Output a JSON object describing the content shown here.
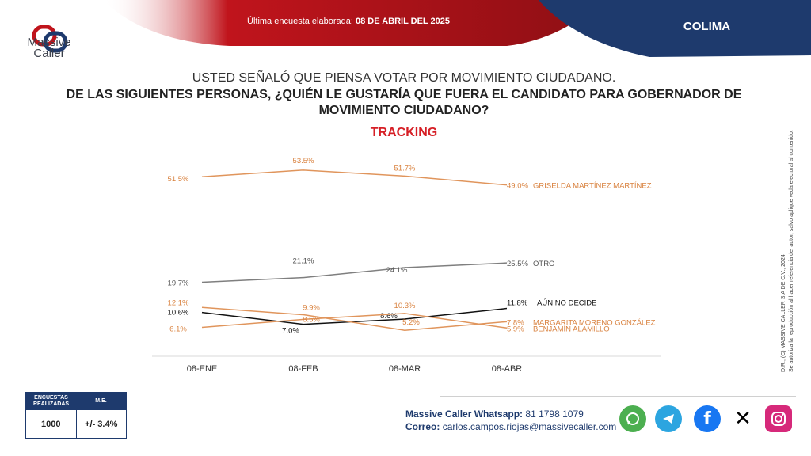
{
  "header": {
    "brand": "Massive Caller",
    "date_prefix": "Última encuesta elaborada: ",
    "date_value": "08 DE ABRIL DEL 2025",
    "region": "COLIMA"
  },
  "question": {
    "line1": "USTED SEÑALÓ QUE PIENSA VOTAR POR MOVIMIENTO CIUDADANO.",
    "line2": "DE LAS SIGUIENTES PERSONAS, ¿QUIÉN LE GUSTARÍA QUE FUERA EL CANDIDATO PARA GOBERNADOR DE MOVIMIENTO CIUDADANO?",
    "tracking": "TRACKING"
  },
  "chart_data": {
    "type": "line",
    "categories": [
      "08-ENE",
      "08-FEB",
      "08-MAR",
      "08-ABR"
    ],
    "series": [
      {
        "name": "GRISELDA MARTÍNEZ MARTÍNEZ",
        "values": [
          51.5,
          53.5,
          51.7,
          49.0
        ],
        "labels": [
          "51.5%",
          "53.5%",
          "51.7%",
          "49.0%"
        ],
        "color": "#e0955c"
      },
      {
        "name": "OTRO",
        "values": [
          19.7,
          21.1,
          24.1,
          25.5
        ],
        "labels": [
          "19.7%",
          "21.1%",
          "24.1%",
          "25.5%"
        ],
        "color": "#7f7f7f"
      },
      {
        "name": "AÚN NO DECIDE",
        "values": [
          10.6,
          7.0,
          8.6,
          11.8
        ],
        "labels": [
          "10.6%",
          "7.0%",
          "8.6%",
          "11.8%"
        ],
        "color": "#111111"
      },
      {
        "name": "MARGARITA MORENO GONZÁLEZ",
        "values": [
          12.1,
          9.9,
          5.2,
          7.8
        ],
        "labels": [
          "12.1%",
          "9.9%",
          "5.2%",
          "7.8%"
        ],
        "color": "#e0955c"
      },
      {
        "name": "BENJAMÍN ALAMILLO",
        "values": [
          6.1,
          8.5,
          10.3,
          5.9
        ],
        "labels": [
          "6.1%",
          "8.5%",
          "10.3%",
          "5.9%"
        ],
        "color": "#e0955c"
      }
    ],
    "grid": false
  },
  "side_note": {
    "line1": "D.R., (C) MASSIVE CALLER S.A DE C.V., 2024",
    "line2": "Se autoriza la reproducción al hacer referencia del autor, salvo aplique veda electoral al contenido."
  },
  "stats": {
    "col1_header": "ENCUESTAS REALIZADAS",
    "col2_header": "M.E.",
    "col1_value": "1000",
    "col2_value": "+/- 3.4%"
  },
  "contact": {
    "whatsapp_label": "Massive Caller Whatsapp:",
    "whatsapp_value": "81 1798 1079",
    "email_label": "Correo:",
    "email_value": "carlos.campos.riojas@massivecaller.com"
  },
  "social_icons": [
    "whatsapp-icon",
    "telegram-icon",
    "facebook-icon",
    "x-icon",
    "instagram-icon"
  ],
  "colors": {
    "brand_red": "#b3121b",
    "brand_navy": "#1e3a6d",
    "accent_orange": "#e0955c"
  }
}
